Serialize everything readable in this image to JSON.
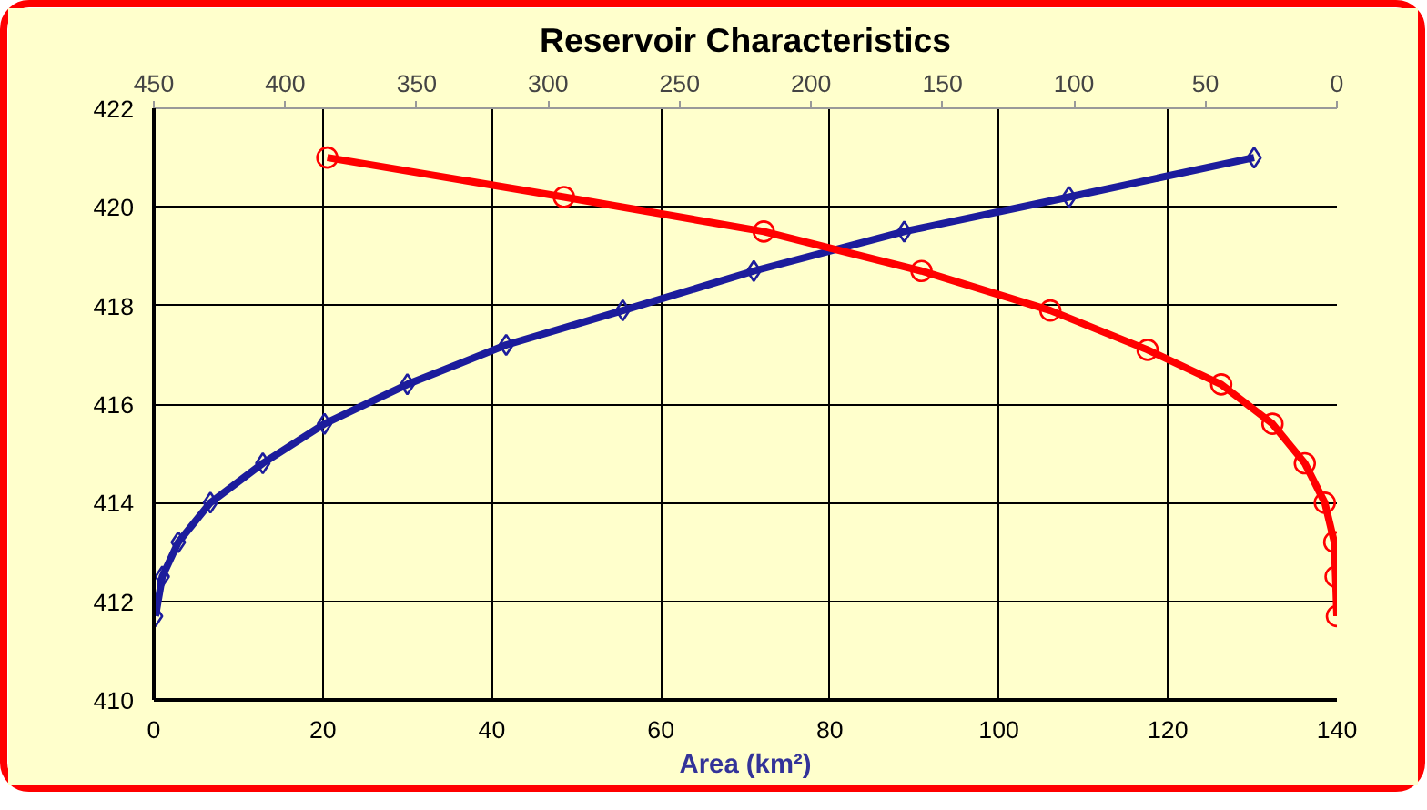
{
  "chart_data": {
    "type": "line",
    "title": "Reservoir Characteristics",
    "xlabel": "Area (km²)",
    "xlim": [
      0,
      140
    ],
    "xticks": [
      0,
      20,
      40,
      60,
      80,
      100,
      120,
      140
    ],
    "x2lim": [
      450,
      0
    ],
    "x2ticks": [
      450,
      400,
      350,
      300,
      250,
      200,
      150,
      100,
      50,
      0
    ],
    "ylim": [
      410,
      422
    ],
    "yticks": [
      410,
      412,
      414,
      416,
      418,
      420,
      422
    ],
    "grid": true,
    "line_style": "solid",
    "series": [
      {
        "color": "#1c1c9c",
        "marker": "diamond",
        "x": [
          0.2,
          1,
          2.9,
          6.7,
          12.9,
          20.2,
          30,
          41.7,
          55.5,
          71,
          88.8,
          108.3,
          130.2
        ],
        "values": [
          411.7,
          412.5,
          413.2,
          414.0,
          414.8,
          415.6,
          416.4,
          417.2,
          417.9,
          418.7,
          419.5,
          420.2,
          421.0
        ]
      },
      {
        "color": "#ff0000",
        "marker": "circle",
        "axis": "x2",
        "x": [
          384,
          294,
          218,
          158,
          109,
          72,
          44,
          24.5,
          12.2,
          4.6,
          1,
          0.5,
          0
        ],
        "values": [
          421.0,
          420.2,
          419.5,
          418.7,
          417.9,
          417.1,
          416.4,
          415.6,
          414.8,
          414.0,
          413.2,
          412.5,
          411.7
        ]
      }
    ]
  }
}
